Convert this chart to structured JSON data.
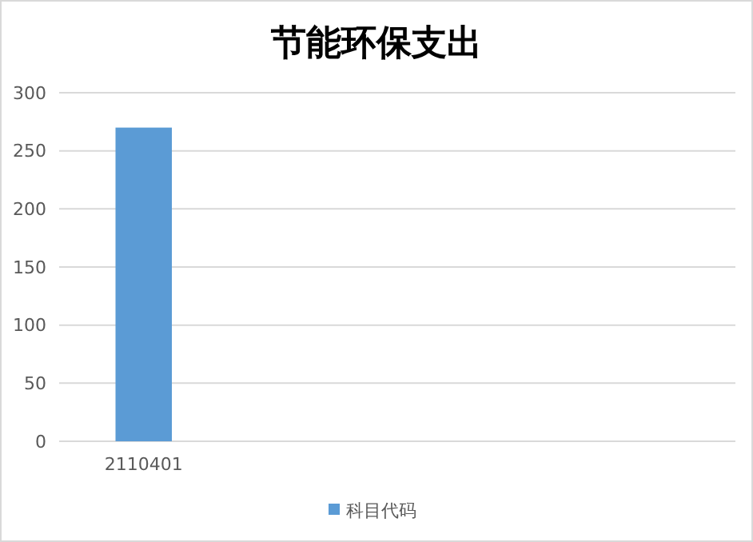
{
  "chart_data": {
    "type": "bar",
    "title": "节能环保支出",
    "categories": [
      "2110401",
      null,
      null,
      null
    ],
    "series": [
      {
        "name": "科目代码",
        "color": "#5b9bd5",
        "values": [
          270,
          null,
          null,
          null
        ]
      }
    ],
    "ylim": [
      0,
      300
    ],
    "yticks": [
      0,
      50,
      100,
      150,
      200,
      250,
      300
    ],
    "grid": "y",
    "legend": "bottom"
  }
}
